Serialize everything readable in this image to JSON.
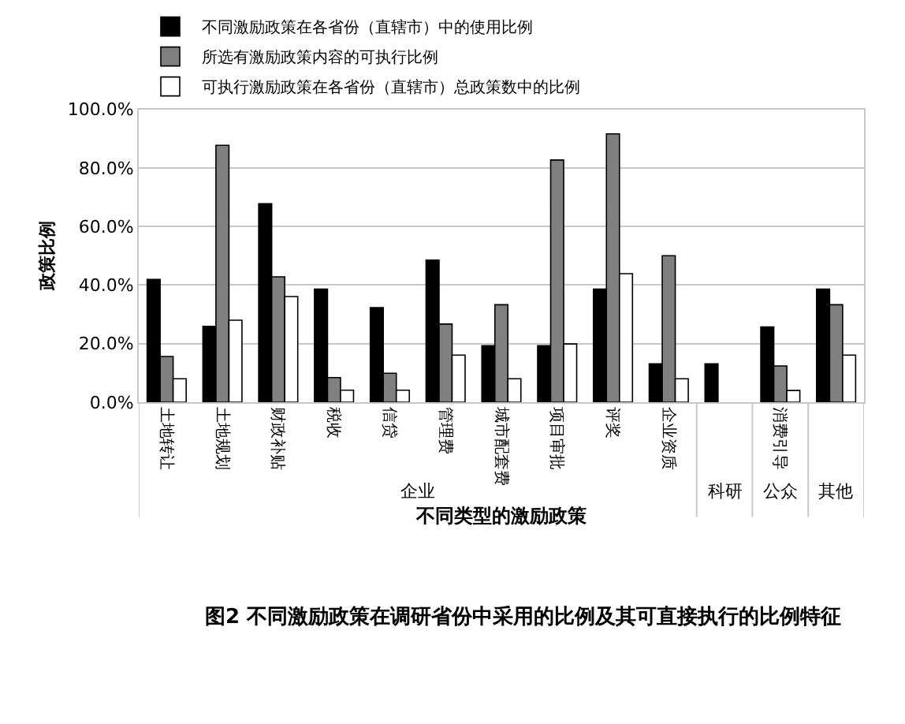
{
  "chart_data": {
    "type": "bar",
    "categories": [
      "土地转让",
      "土地规划",
      "财政补贴",
      "税收",
      "信贷",
      "管理费",
      "城市配套费",
      "项目审批",
      "评奖",
      "企业资质",
      null,
      "消费引导",
      null
    ],
    "series": [
      {
        "name": "不同激励政策在各省份（直辖市）中的使用比例",
        "color": "#000000",
        "values": [
          41.9,
          25.9,
          67.8,
          38.6,
          32.3,
          48.5,
          19.3,
          19.3,
          38.6,
          13.1,
          13.1,
          25.7,
          38.6
        ]
      },
      {
        "name": "所选有激励政策内容的可执行比例",
        "color": "#808080",
        "values": [
          15.6,
          87.7,
          42.8,
          8.4,
          9.9,
          26.7,
          33.3,
          82.7,
          91.6,
          50.0,
          null,
          12.4,
          33.3
        ]
      },
      {
        "name": "可执行激励政策在各省份（直辖市）总政策数中的比例",
        "color": "#ffffff",
        "values": [
          8.0,
          28.0,
          36.1,
          4.1,
          4.1,
          16.1,
          8.0,
          19.9,
          43.9,
          8.0,
          null,
          4.0,
          16.1
        ]
      }
    ],
    "ylabel": "政策比例",
    "xlabel": "不同类型的激励政策",
    "ylim": [
      0,
      100
    ],
    "yticks": [
      {
        "value": 0,
        "label": "0.0%"
      },
      {
        "value": 20,
        "label": "20.0%"
      },
      {
        "value": 40,
        "label": "40.0%"
      },
      {
        "value": 60,
        "label": "60.0%"
      },
      {
        "value": 80,
        "label": "80.0%"
      },
      {
        "value": 100,
        "label": "100.0%"
      }
    ],
    "grid": "y",
    "legend": "top",
    "annotations": [
      "企业",
      "科研",
      "公众",
      "其他",
      "图2 不同激励政策在调研省份中采用的比例及其可直接执行的比例特征"
    ]
  }
}
